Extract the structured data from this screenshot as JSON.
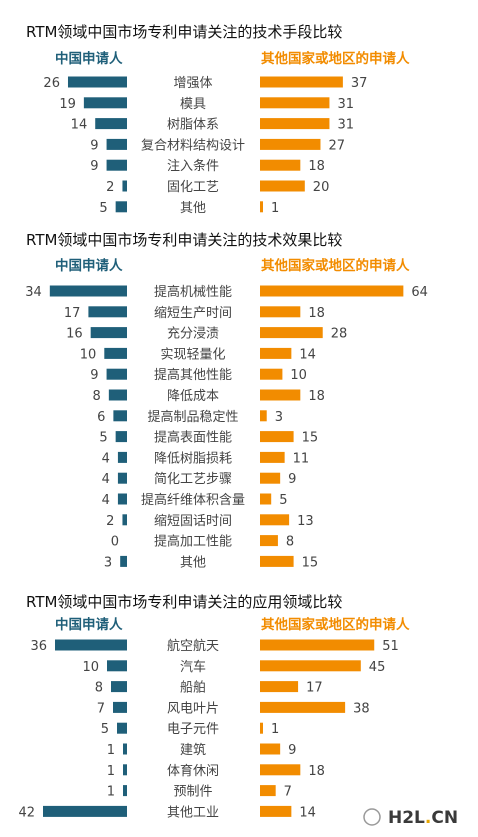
{
  "colors": {
    "china": "#1f5f79",
    "other": "#f28c00"
  },
  "chart_data": [
    {
      "type": "bar",
      "title": "RTM领域中国市场专利申请关注的技术手段比较",
      "series": [
        {
          "name": "中国申请人",
          "values": [
            26,
            19,
            14,
            9,
            9,
            2,
            5
          ]
        },
        {
          "name": "其他国家或地区的申请人",
          "values": [
            37,
            31,
            31,
            27,
            18,
            20,
            1
          ]
        }
      ],
      "categories": [
        "增强体",
        "模具",
        "树脂体系",
        "复合材料结构设计",
        "注入条件",
        "固化工艺",
        "其他"
      ]
    },
    {
      "type": "bar",
      "title": "RTM领域中国市场专利申请关注的技术效果比较",
      "series": [
        {
          "name": "中国申请人",
          "values": [
            34,
            17,
            16,
            10,
            9,
            8,
            6,
            5,
            4,
            4,
            4,
            2,
            0,
            3
          ]
        },
        {
          "name": "其他国家或地区的申请人",
          "values": [
            64,
            18,
            28,
            14,
            10,
            18,
            3,
            15,
            11,
            9,
            5,
            13,
            8,
            15
          ]
        }
      ],
      "categories": [
        "提高机械性能",
        "缩短生产时间",
        "充分浸渍",
        "实现轻量化",
        "提高其他性能",
        "降低成本",
        "提高制品稳定性",
        "提高表面性能",
        "降低树脂损耗",
        "简化工艺步骤",
        "提高纤维体积含量",
        "缩短固话时间",
        "提高加工性能",
        "其他"
      ]
    },
    {
      "type": "bar",
      "title": "RTM领域中国市场专利申请关注的应用领域比较",
      "series": [
        {
          "name": "中国申请人",
          "values": [
            36,
            10,
            8,
            7,
            5,
            1,
            1,
            1,
            42
          ]
        },
        {
          "name": "其他国家或地区的申请人",
          "values": [
            51,
            45,
            17,
            38,
            1,
            9,
            18,
            7,
            14
          ]
        }
      ],
      "categories": [
        "航空航天",
        "汽车",
        "船舶",
        "风电叶片",
        "电子元件",
        "建筑",
        "体育休闲",
        "预制件",
        "其他工业"
      ]
    }
  ],
  "watermark": {
    "text": "H2L.CN"
  }
}
